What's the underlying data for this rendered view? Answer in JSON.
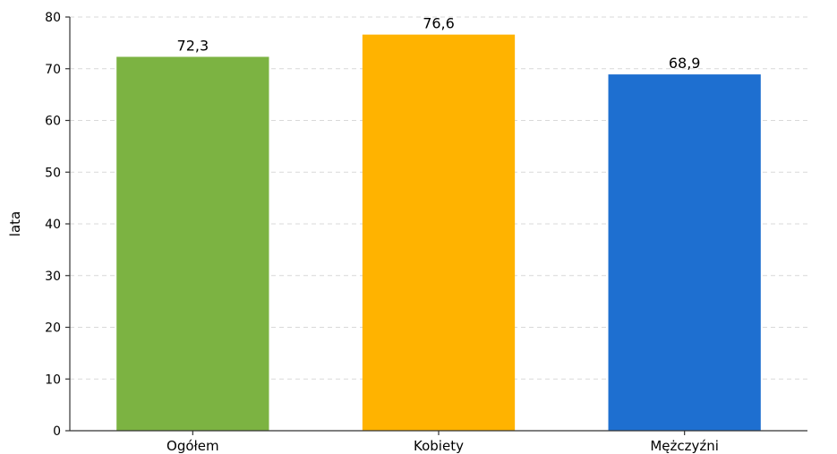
{
  "chart_data": {
    "type": "bar",
    "categories": [
      "Ogółem",
      "Kobiety",
      "Mężczyźni"
    ],
    "values": [
      72.3,
      76.6,
      68.9
    ],
    "value_labels": [
      "72,3",
      "76,6",
      "68,9"
    ],
    "colors": [
      "#7cb342",
      "#ffb300",
      "#1e6fd0"
    ],
    "title": "",
    "xlabel": "",
    "ylabel": "lata",
    "ylim": [
      0,
      80
    ],
    "yticks": [
      0,
      10,
      20,
      30,
      40,
      50,
      60,
      70,
      80
    ],
    "grid": "horizontal dashed",
    "legend": "none"
  }
}
